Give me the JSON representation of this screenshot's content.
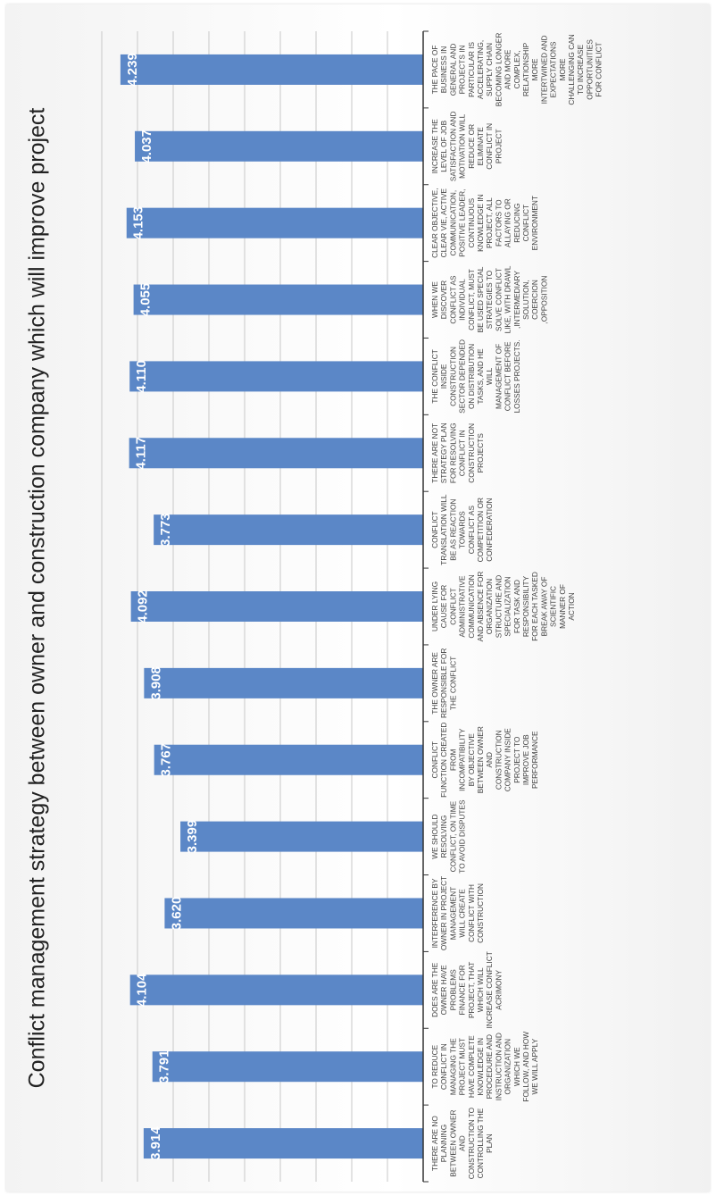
{
  "chart_data": {
    "type": "bar",
    "orientation": "vertical (image rotated 90 degrees)",
    "title": "Conflict management strategy between owner and construction company which will improve project",
    "xlabel": "",
    "ylabel": "",
    "ylim": [
      0,
      4.5
    ],
    "grid": true,
    "legend": "none",
    "bar_color": "#5b87c7",
    "categories": [
      [
        "THERE ARE NO",
        "PLANNING",
        "BETWEEN OWNER",
        "AND",
        "CONSTRUCTION TO",
        "CONTROLLING THE",
        "PLAN"
      ],
      [
        "TO REDUCE",
        "CONFLICT IN",
        "MANAGING THE",
        "PROJECT MUST",
        "HAVE COMPLETE",
        "KNOWLEDGE IN",
        "PROCEDURE AND",
        "INSTRUCTION AND",
        "ORGANIZATION",
        "WHICH WE",
        "FOLLOW, AND HOW",
        "WE WILL APPLY"
      ],
      [
        "DOES ARE THE",
        "OWNER HAVE",
        "PROBLEMS",
        "FINANCE FOR",
        "PROJECT, THAT",
        "WHICH WILL",
        "INCREASE CONFLICT",
        "ACRIMONY"
      ],
      [
        "INTERFERENCE BY",
        "OWNER IN PROJECT",
        "MANAGEMENT",
        "WILL CREATE",
        "CONFLICT WITH",
        "CONSTRUCTION"
      ],
      [
        "WE SHOULD",
        "RESOLVING",
        "CONFLICT, ON TIME",
        "TO AVOID DISPUTES"
      ],
      [
        "CONFLICT",
        "FUNCTION CREATED",
        "FROM",
        "INCOMPATIBILITY",
        "BY OBJECTIVE",
        "BETWEEN OWNER",
        "AND",
        "CONSTRUCTION",
        "COMPANY INSIDE",
        "PROJECT TO",
        "IMPROVE JOB",
        "PERFORMANCE"
      ],
      [
        "THE OWNER ARE",
        "RESPONSIBLE FOR",
        "THE CONFLICT"
      ],
      [
        "UNDER LYING",
        "CAUSE FOR",
        "CONFLICT",
        "ADMINISTRATIVE",
        "COMMUNICATION",
        "AND ABSENCE FOR",
        "ORGANIZATION",
        "STRUCTURE AND",
        "SPECIALIZATION",
        "FOR TASK AND",
        "RESPONSIBILITY",
        "FOR EACH TASKED",
        "BREAK AWAY OF",
        "SCIENTIFIC",
        "MANNER OF",
        "ACTION"
      ],
      [
        "CONFLICT",
        "TRANSLATION WILL",
        "BE AS REACTION",
        "TOWARDS",
        "CONFLICT AS",
        "COMPETITION OR",
        "CONFEDERATION"
      ],
      [
        "THERE ARE NOT",
        "STRATEGY PLAN",
        "FOR RESOLVING",
        "CONFLICT IN",
        "CONSTRUCTION",
        "PROJECTS"
      ],
      [
        "THE CONFLICT",
        "INSIDE",
        "CONSTRUCTION",
        "SECTOR DEPENDED",
        "ON DISTRIBUTION",
        "TASKS, AND HE",
        "WILL",
        "MANAGEMENT OF",
        "CONFLICT BEFORE",
        "LOSSES PROJECTS."
      ],
      [
        "WHEN WE",
        "DISCOVER",
        "CONFLICT AS",
        "INDIVIDUAL",
        "CONFLICT, MUST",
        "BE USED SPECIAL",
        "STRATEGIES TO",
        "SOLVE CONFLICT",
        "LIKE, WITH DRAWL",
        ",INTERMEDIARY",
        "SOLUTION,",
        "COERCION",
        ",OPPOSITION"
      ],
      [
        "CLEAR OBJECTIVE,",
        "CLEAR VIE, ACTIVE",
        "COMMUNICATION,",
        "POSITIVE LEADER,",
        "CONTINUOUS",
        "KNOWLEDGE IN",
        "PROJECT, ALL",
        "FACTORS TO",
        "ALLAYING OR",
        "REDUCING",
        "CONFLICT",
        "ENVIRONMENT"
      ],
      [
        "INCREASE THE",
        "LEVEL OF JOB",
        "SATISFACTION AND",
        "MOTIVATION WILL",
        "REDUCE OR",
        "ELIMINATE",
        "CONFLICT IN",
        "PROJECT"
      ],
      [
        "THE PACE OF",
        "BUSINESS IN",
        "GENERAL AND",
        "PROJECTS IN",
        "PARTICULAR IS",
        "ACCELERATING,",
        "SUPPLY CHAIN",
        "BECOMING LONGER",
        "AND MORE",
        "COMPLEX,",
        "RELATIONSHIP",
        "MORE",
        "INTERTWINED AND",
        "EXPECTATIONS",
        "MORE",
        "CHALLENGING CAN",
        "TO INCREASE",
        "OPPORTUNITIES",
        "FOR CONFLICT"
      ]
    ],
    "values": [
      "3.914",
      "3.791",
      "4.104",
      "3.620",
      "3.399",
      "3.767",
      "3.908",
      "4.092",
      "3.773",
      "4.117",
      "4.110",
      "4.055",
      "4.153",
      "4.037",
      "4.239"
    ]
  }
}
